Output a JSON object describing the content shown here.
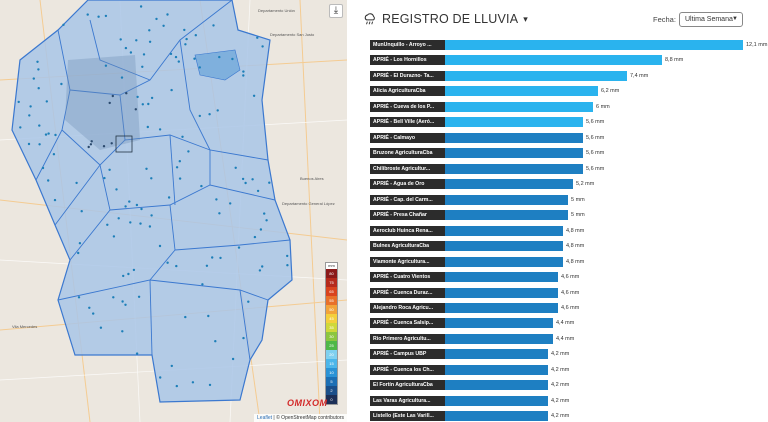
{
  "panel": {
    "title": "REGISTRO DE LLUVIA",
    "fecha_label": "Fecha:",
    "fecha_selected": "Ultima Semana",
    "icon": "rain-cloud-icon"
  },
  "map": {
    "download_icon": "download-icon",
    "legend_unit": "mm",
    "legend": [
      {
        "label": "80",
        "color": "#8b1a1a"
      },
      {
        "label": "75",
        "color": "#b52a1c"
      },
      {
        "label": "65",
        "color": "#d9431e"
      },
      {
        "label": "55",
        "color": "#e8702a"
      },
      {
        "label": "50",
        "color": "#f2a33a"
      },
      {
        "label": "45",
        "color": "#f4cf3c"
      },
      {
        "label": "35",
        "color": "#cfd83a"
      },
      {
        "label": "30",
        "color": "#8cc63f"
      },
      {
        "label": "25",
        "color": "#4fb848"
      },
      {
        "label": "20",
        "color": "#7fd0ef"
      },
      {
        "label": "15",
        "color": "#4cb6ea"
      },
      {
        "label": "10",
        "color": "#2b93d6"
      },
      {
        "label": "5",
        "color": "#1d6fb4"
      },
      {
        "label": "2",
        "color": "#1b4f8a"
      },
      {
        "label": "0",
        "color": "#1c2f57"
      }
    ],
    "brand": "OMIXOM",
    "attribution_leaflet": "Leaflet",
    "attribution_osm": "© OpenStreetMap contributors",
    "place_labels": [
      "Departamento Unión",
      "Departamento San Justo",
      "Buenos Aires",
      "Departamento General López",
      "Vila Mercedes"
    ]
  },
  "colors": {
    "bar_light": "#2ab3ee",
    "bar_dark": "#1e7fc2",
    "label_bg": "#2c2c2c"
  },
  "stations": [
    {
      "name": "MunUnquillo - Arroyo ...",
      "value": 12.1,
      "text": "12,1 mm"
    },
    {
      "name": "APRIÉ - Los Hornillos",
      "value": 8.8,
      "text": "8,8 mm"
    },
    {
      "name": "APRIÉ - El Durazno- Ta...",
      "value": 7.4,
      "text": "7,4 mm"
    },
    {
      "name": "Alicia AgriculturaCba",
      "value": 6.2,
      "text": "6,2 mm"
    },
    {
      "name": "APRIÉ - Cueva de los P...",
      "value": 6.0,
      "text": "6 mm"
    },
    {
      "name": "APRIÉ - Bell Ville (Aeró...",
      "value": 5.6,
      "text": "5,6 mm"
    },
    {
      "name": "APRIÉ - Calmayo",
      "value": 5.6,
      "text": "5,6 mm"
    },
    {
      "name": "Bruzone AgriculturaCba",
      "value": 5.6,
      "text": "5,6 mm"
    },
    {
      "name": "Chilibroste Agricultur...",
      "value": 5.6,
      "text": "5,6 mm"
    },
    {
      "name": "APRIÉ - Agua de Oro",
      "value": 5.2,
      "text": "5,2 mm"
    },
    {
      "name": "APRIÉ - Cap. del Carm...",
      "value": 5.0,
      "text": "5 mm"
    },
    {
      "name": "APRIÉ - Presa Chañar",
      "value": 5.0,
      "text": "5 mm"
    },
    {
      "name": "Aeroclub Huinca Rena...",
      "value": 4.8,
      "text": "4,8 mm"
    },
    {
      "name": "Bulnes AgriculturaCba",
      "value": 4.8,
      "text": "4,8 mm"
    },
    {
      "name": "Viamonte Agricultura...",
      "value": 4.8,
      "text": "4,8 mm"
    },
    {
      "name": "APRIÉ - Cuatro Vientos",
      "value": 4.6,
      "text": "4,6 mm"
    },
    {
      "name": "APRIÉ - Cuenca Duraz...",
      "value": 4.6,
      "text": "4,6 mm"
    },
    {
      "name": "Alejandro Roca Agricu...",
      "value": 4.6,
      "text": "4,6 mm"
    },
    {
      "name": "APRIÉ - Cuenca Salsip...",
      "value": 4.4,
      "text": "4,4 mm"
    },
    {
      "name": "Rio Primero Agricultu...",
      "value": 4.4,
      "text": "4,4 mm"
    },
    {
      "name": "APRIÉ - Campus UBP",
      "value": 4.2,
      "text": "4,2 mm"
    },
    {
      "name": "APRIÉ - Cuenca los Ch...",
      "value": 4.2,
      "text": "4,2 mm"
    },
    {
      "name": "El Fortín AgriculturaCba",
      "value": 4.2,
      "text": "4,2 mm"
    },
    {
      "name": "Las Varas Agricultura...",
      "value": 4.2,
      "text": "4,2 mm"
    },
    {
      "name": "Listello (Este Las Varill...",
      "value": 4.2,
      "text": "4,2 mm"
    }
  ]
}
